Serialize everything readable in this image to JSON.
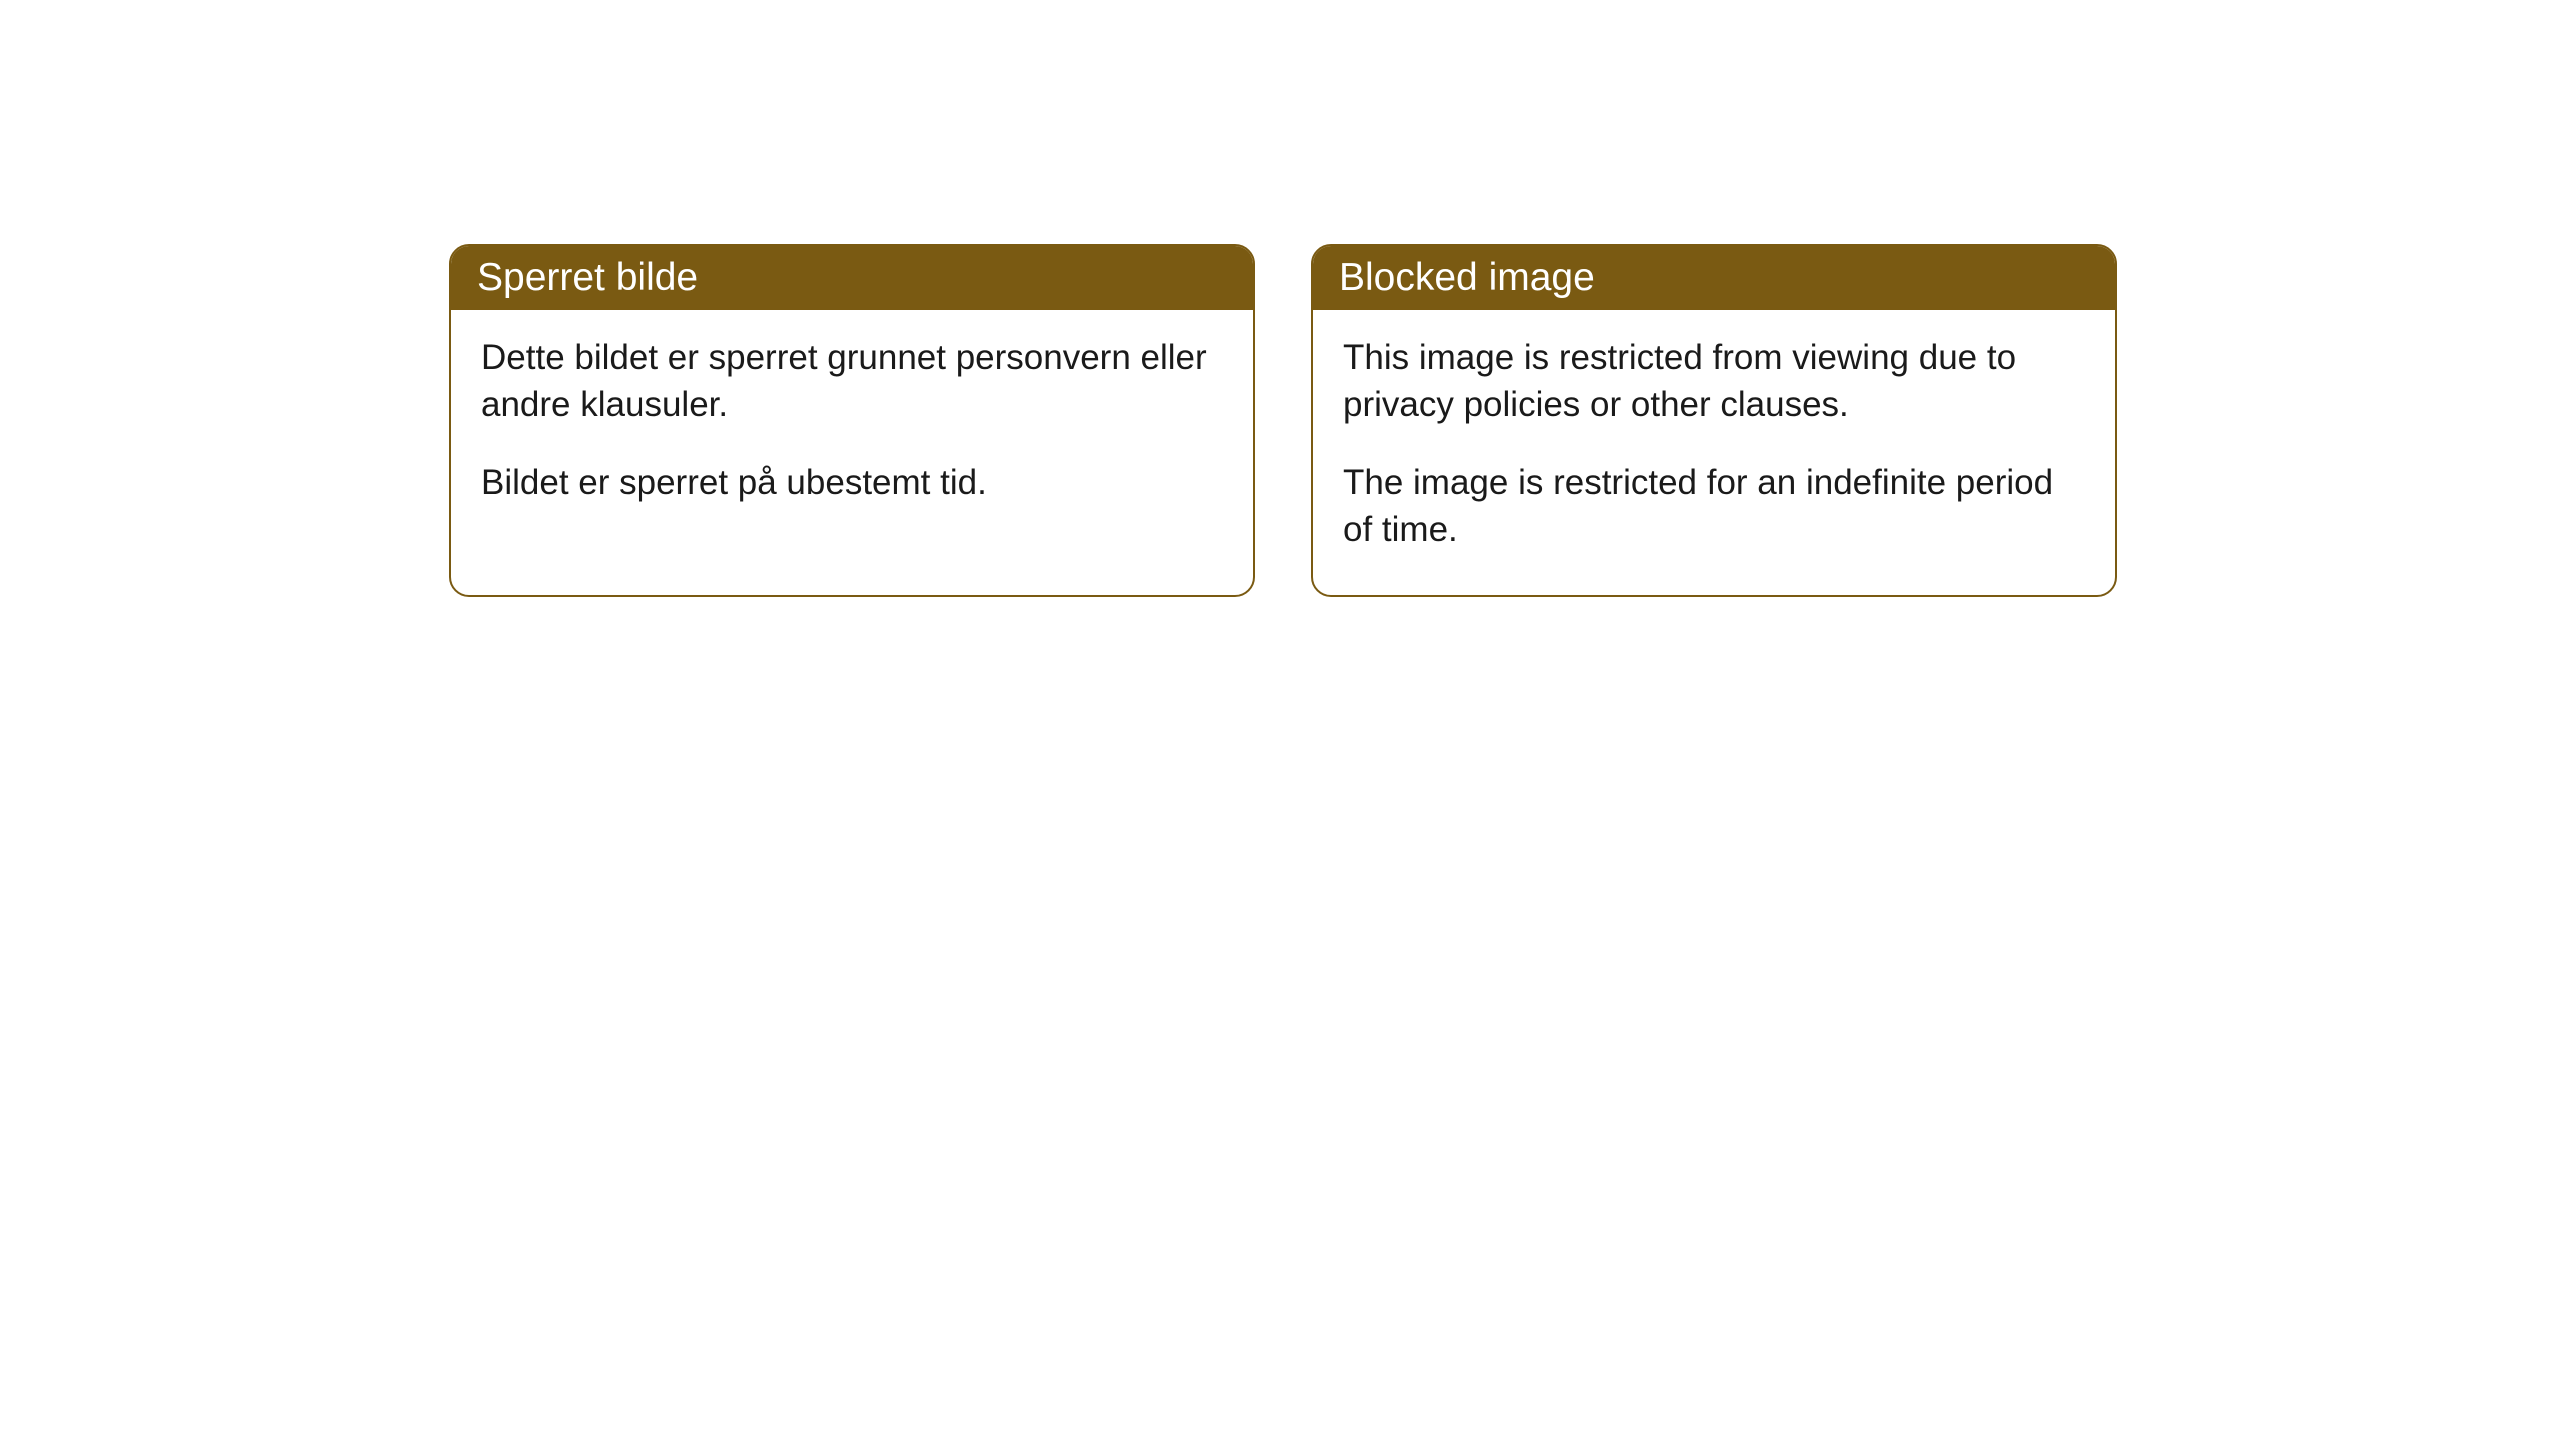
{
  "styling": {
    "header_bg_color": "#7a5a12",
    "header_text_color": "#ffffff",
    "border_color": "#7a5a12",
    "body_text_color": "#1a1a1a",
    "background_color": "#ffffff",
    "border_radius": 20,
    "header_fontsize": 39,
    "body_fontsize": 35
  },
  "cards": [
    {
      "title": "Sperret bilde",
      "paragraphs": [
        "Dette bildet er sperret grunnet personvern eller andre klausuler.",
        "Bildet er sperret på ubestemt tid."
      ]
    },
    {
      "title": "Blocked image",
      "paragraphs": [
        "This image is restricted from viewing due to privacy policies or other clauses.",
        "The image is restricted for an indefinite period of time."
      ]
    }
  ]
}
